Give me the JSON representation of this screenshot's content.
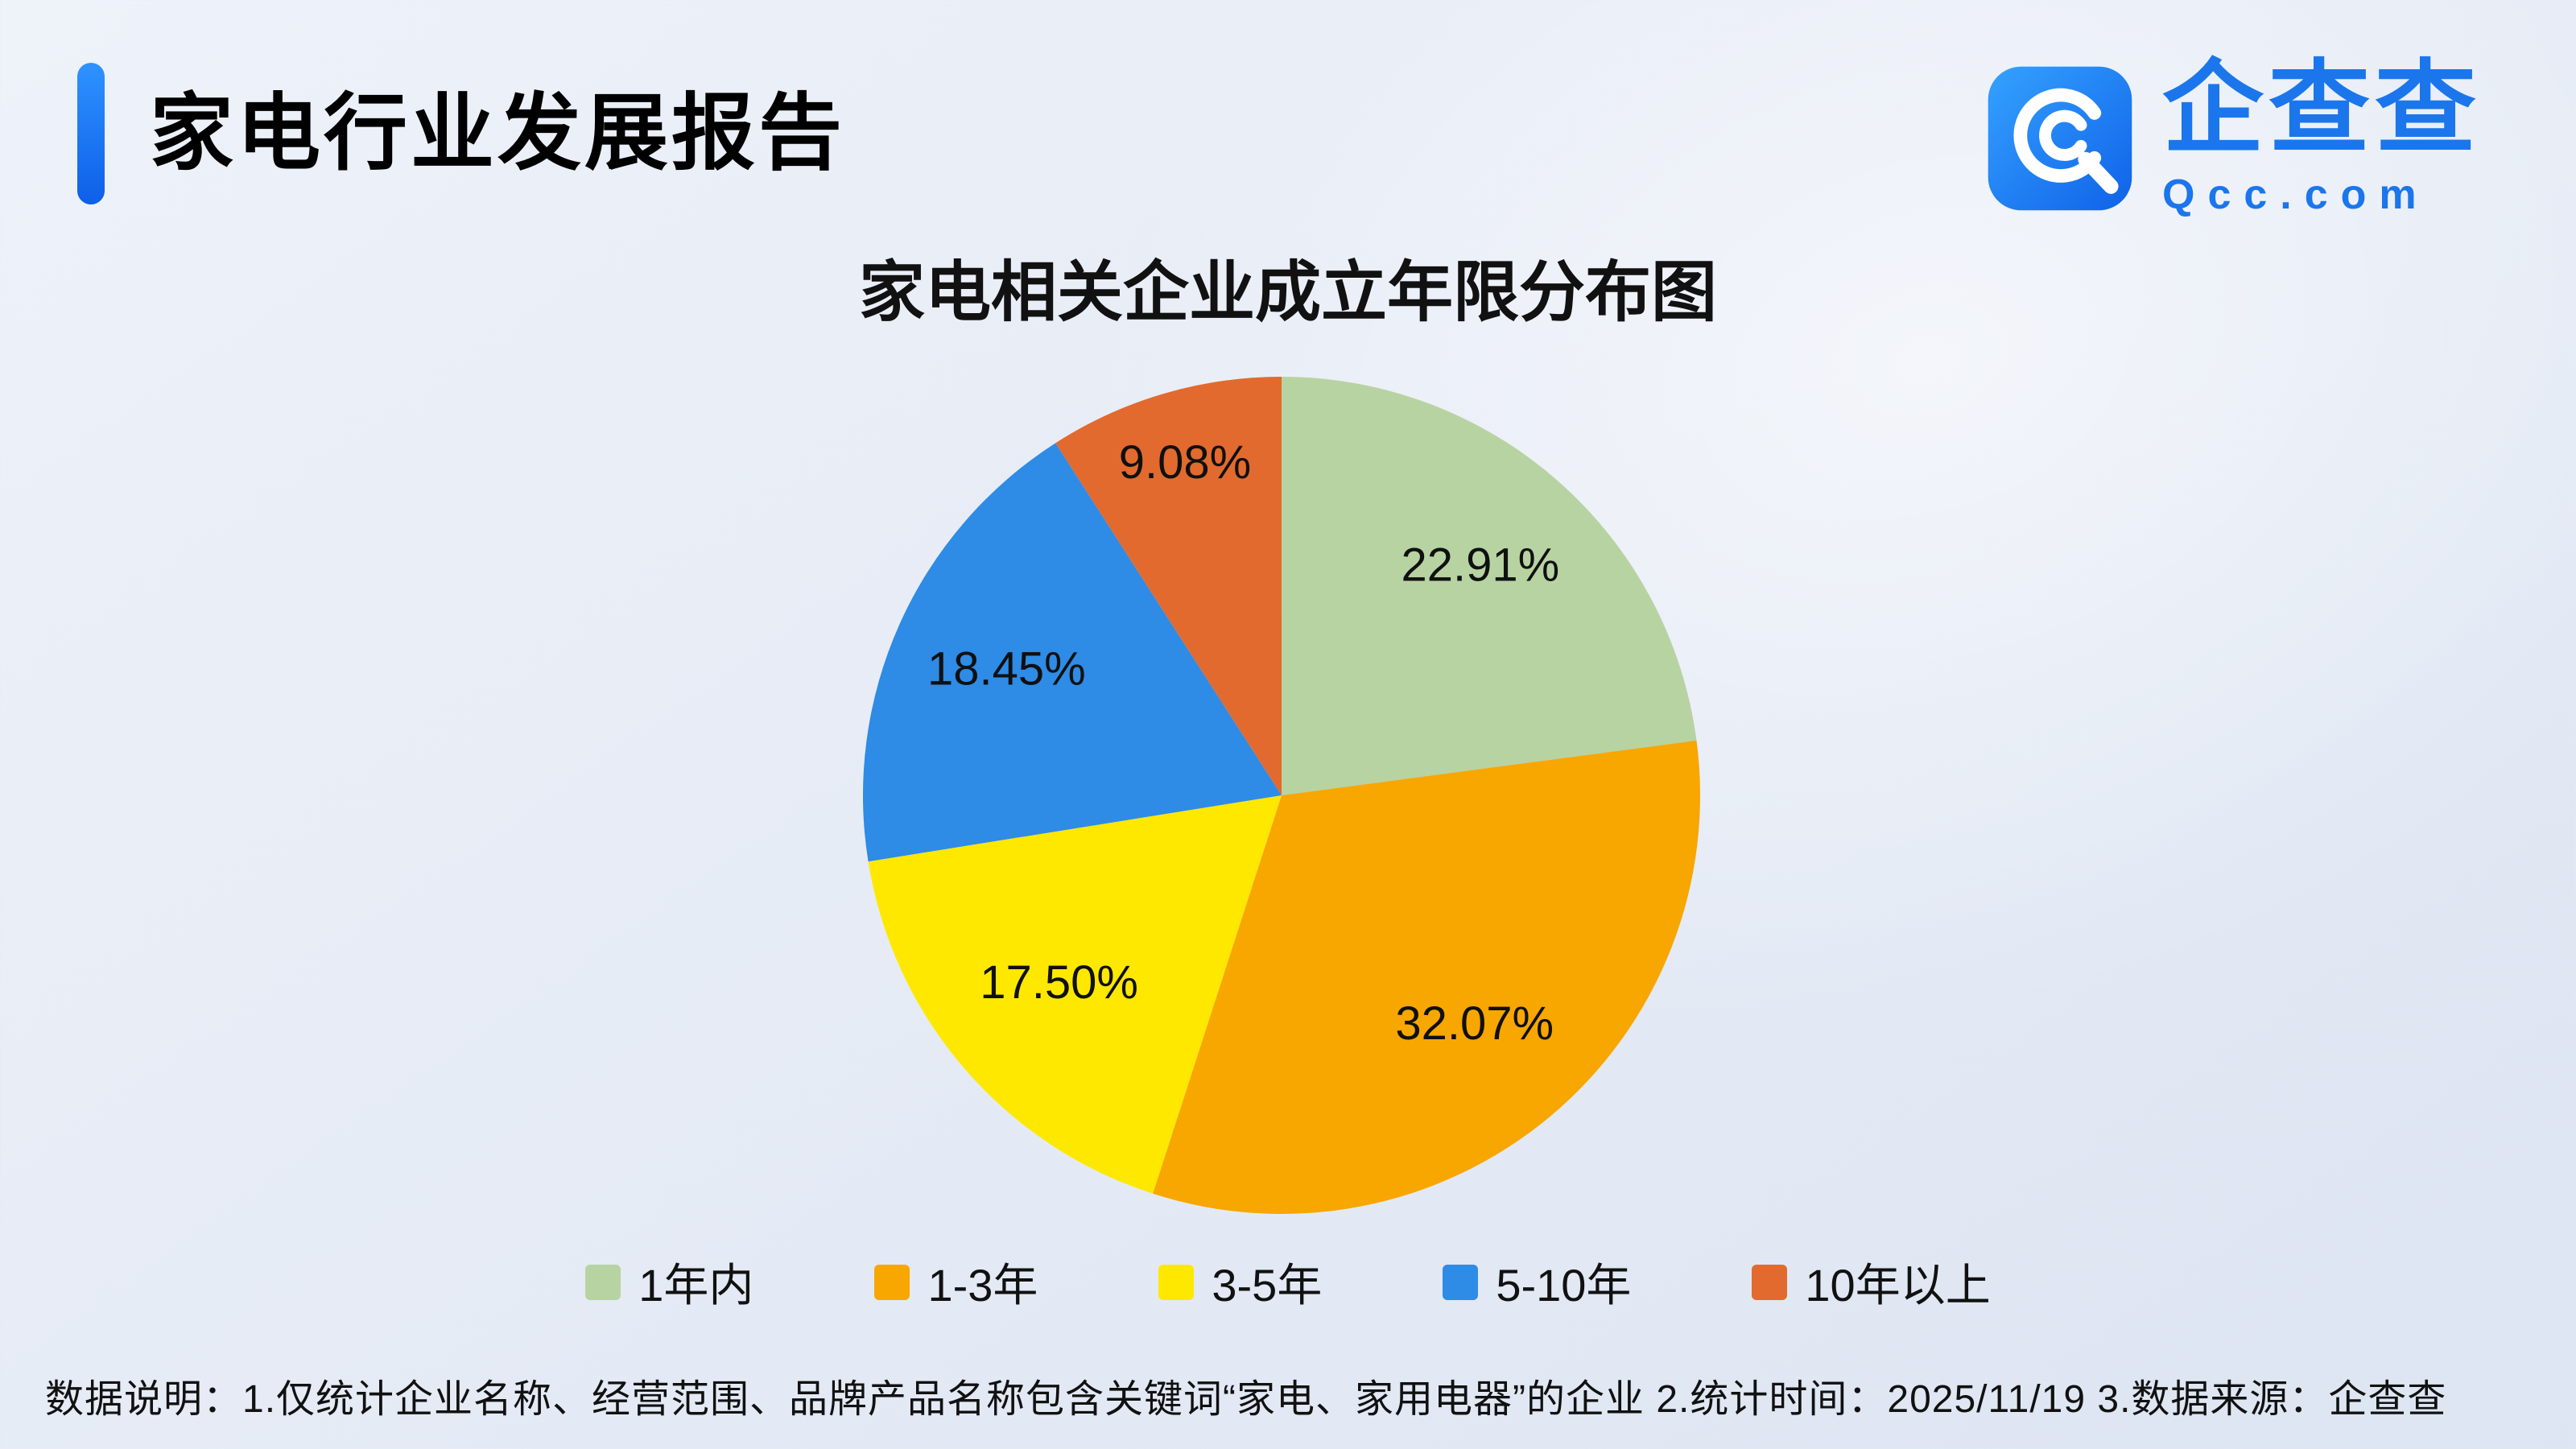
{
  "page": {
    "title": "家电行业发展报告"
  },
  "logo": {
    "brand": "企查查",
    "domain": "Qcc.com",
    "brand_color": "#1b76ec"
  },
  "chart_data": {
    "type": "pie",
    "title": "家电相关企业成立年限分布图",
    "legend_position": "bottom",
    "direction": "clockwise",
    "start_angle_deg": 0,
    "series": [
      {
        "label": "1年内",
        "value": 22.91,
        "display": "22.91%",
        "color": "#B7D3A2"
      },
      {
        "label": "1-3年",
        "value": 32.07,
        "display": "32.07%",
        "color": "#F8A600"
      },
      {
        "label": "3-5年",
        "value": 17.5,
        "display": "17.50%",
        "color": "#FFE800"
      },
      {
        "label": "5-10年",
        "value": 18.45,
        "display": "18.45%",
        "color": "#2E8BE6"
      },
      {
        "label": "10年以上",
        "value": 9.08,
        "display": "9.08%",
        "color": "#E26A2E"
      }
    ]
  },
  "footer": {
    "note": "数据说明：1.仅统计企业名称、经营范围、品牌产品名称包含关键词“家电、家用电器”的企业  2.统计时间：2025/11/19   3.数据来源：企查查"
  }
}
